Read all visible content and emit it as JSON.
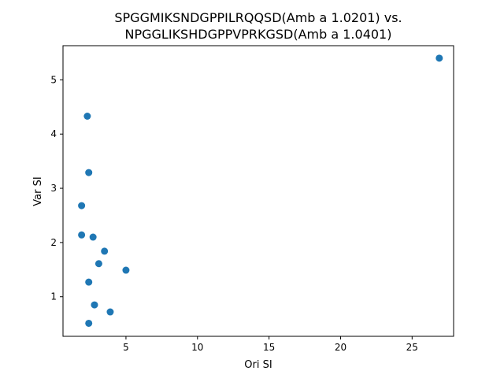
{
  "chart_data": {
    "type": "scatter",
    "title_lines": [
      "SPGGMIKSNDGPPILRQQSD(Amb a 1.0201) vs.",
      "NPGGLIKSHDGPPVPRKGSD(Amb a 1.0401)"
    ],
    "xlabel": "Ori SI",
    "ylabel": "Var SI",
    "xlim": [
      0.6,
      27.9
    ],
    "ylim": [
      0.27,
      5.63
    ],
    "xticks": [
      5,
      10,
      15,
      20,
      25
    ],
    "yticks": [
      1,
      2,
      3,
      4,
      5
    ],
    "grid": false,
    "marker_color": "#1f77b4",
    "points": [
      {
        "x": 26.9,
        "y": 5.4
      },
      {
        "x": 2.3,
        "y": 4.33
      },
      {
        "x": 2.4,
        "y": 3.29
      },
      {
        "x": 1.9,
        "y": 2.68
      },
      {
        "x": 1.9,
        "y": 2.14
      },
      {
        "x": 2.7,
        "y": 2.1
      },
      {
        "x": 3.5,
        "y": 1.84
      },
      {
        "x": 3.1,
        "y": 1.61
      },
      {
        "x": 5.0,
        "y": 1.49
      },
      {
        "x": 2.4,
        "y": 1.27
      },
      {
        "x": 2.8,
        "y": 0.85
      },
      {
        "x": 3.9,
        "y": 0.72
      },
      {
        "x": 2.4,
        "y": 0.51
      }
    ]
  }
}
